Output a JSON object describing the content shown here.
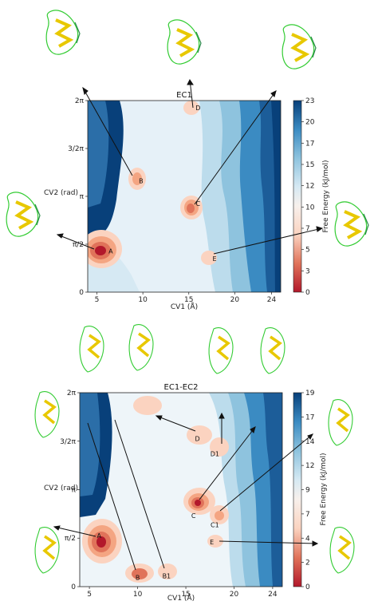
{
  "chart_data": [
    {
      "type": "heatmap",
      "title": "EC1",
      "xlabel": "CV1 (Å)",
      "ylabel": "CV2 (rad)",
      "xlim": [
        4,
        25
      ],
      "ylim": [
        0,
        6.283
      ],
      "x_ticks": [
        {
          "value": 5,
          "label": "5"
        },
        {
          "value": 10,
          "label": "10"
        },
        {
          "value": 15,
          "label": "15"
        },
        {
          "value": 20,
          "label": "20"
        },
        {
          "value": 24,
          "label": "24"
        }
      ],
      "y_ticks": [
        {
          "value": 0,
          "label": "0"
        },
        {
          "value": 1.571,
          "label": "π/2"
        },
        {
          "value": 3.1416,
          "label": "π"
        },
        {
          "value": 4.712,
          "label": "3/2π"
        },
        {
          "value": 6.283,
          "label": "2π"
        }
      ],
      "colorbar": {
        "label": "Free Energy (kJ/mol)",
        "ticks": [
          "0",
          "3",
          "5",
          "7",
          "10",
          "12",
          "15",
          "17",
          "20",
          "23"
        ]
      },
      "minima": [
        {
          "label": "A",
          "x": 6.5,
          "y": 1.35
        },
        {
          "label": "B",
          "x": 9.8,
          "y": 3.65
        },
        {
          "label": "C",
          "x": 16.0,
          "y": 2.9
        },
        {
          "label": "D",
          "x": 16.0,
          "y": 6.05
        },
        {
          "label": "E",
          "x": 17.8,
          "y": 1.1
        }
      ]
    },
    {
      "type": "heatmap",
      "title": "EC1-EC2",
      "xlabel": "CV1 (Å)",
      "ylabel": "CV2 (rad)",
      "xlim": [
        4,
        25
      ],
      "ylim": [
        0,
        6.283
      ],
      "x_ticks": [
        {
          "value": 5,
          "label": "5"
        },
        {
          "value": 10,
          "label": "10"
        },
        {
          "value": 15,
          "label": "15"
        },
        {
          "value": 20,
          "label": "20"
        },
        {
          "value": 24,
          "label": "24"
        }
      ],
      "y_ticks": [
        {
          "value": 0,
          "label": "0"
        },
        {
          "value": 1.571,
          "label": "π/2"
        },
        {
          "value": 3.1416,
          "label": "π"
        },
        {
          "value": 4.712,
          "label": "3/2π"
        },
        {
          "value": 6.283,
          "label": "2π"
        }
      ],
      "colorbar": {
        "label": "Free Energy (kJ/mol)",
        "ticks": [
          "0",
          "2",
          "4",
          "7",
          "9",
          "12",
          "14",
          "17",
          "19"
        ]
      },
      "minima": [
        {
          "label": "A",
          "x": 6.0,
          "y": 1.65
        },
        {
          "label": "B",
          "x": 10.0,
          "y": 0.3
        },
        {
          "label": "B1",
          "x": 13.0,
          "y": 0.35
        },
        {
          "label": "C",
          "x": 15.8,
          "y": 2.3
        },
        {
          "label": "C1",
          "x": 18.0,
          "y": 2.0
        },
        {
          "label": "D",
          "x": 16.2,
          "y": 4.8
        },
        {
          "label": "D1",
          "x": 18.0,
          "y": 4.3
        },
        {
          "label": "E",
          "x": 17.7,
          "y": 1.45
        }
      ]
    }
  ]
}
